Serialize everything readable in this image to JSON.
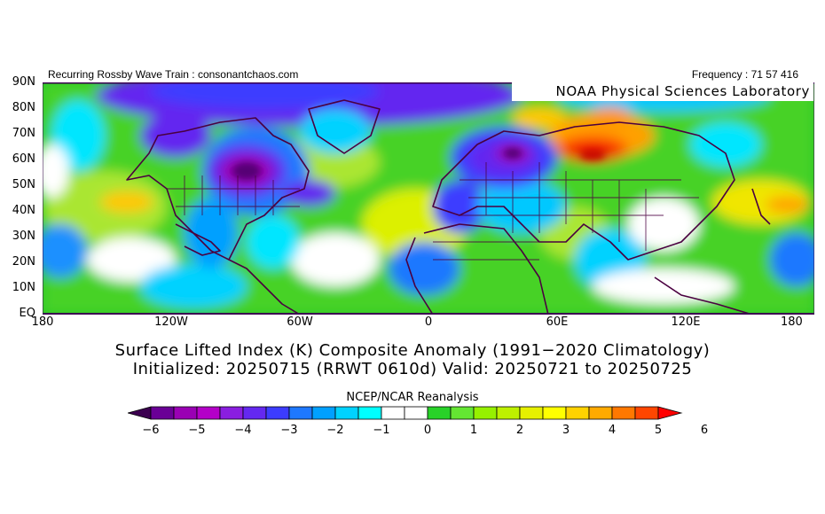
{
  "header": {
    "left_text": "Recurring Rossby Wave Train : consonantchaos.com",
    "right_text": "Frequency : 71 57 416",
    "lab_label": "NOAA Physical Sciences Laboratory"
  },
  "map": {
    "lat_labels": [
      "90N",
      "80N",
      "70N",
      "60N",
      "50N",
      "40N",
      "30N",
      "20N",
      "10N",
      "EQ"
    ],
    "lon_labels": [
      "180",
      "120W",
      "60W",
      "0",
      "60E",
      "120E",
      "180"
    ]
  },
  "titles": {
    "line1": "Surface Lifted Index (K) Composite Anomaly (1991−2020 Climatology)",
    "line2": "Initialized: 20250715 (RRWT 0610d) Valid: 20250721 to 20250725",
    "source": "NCEP/NCAR Reanalysis"
  },
  "colorbar": {
    "labels": [
      "−6",
      "−5",
      "−4",
      "−3",
      "−2",
      "−1",
      "0",
      "1",
      "2",
      "3",
      "4",
      "5",
      "6"
    ],
    "colors": [
      "#3c0050",
      "#6a0096",
      "#9a00b4",
      "#b400c8",
      "#8a1ee0",
      "#6428f0",
      "#3c3cff",
      "#1e78ff",
      "#00a0ff",
      "#00d2ff",
      "#00ffff",
      "#ffffff",
      "#ffffff",
      "#28d228",
      "#64e632",
      "#96f000",
      "#bef000",
      "#e6f000",
      "#ffff00",
      "#ffd200",
      "#ffaa00",
      "#ff7800",
      "#ff4600",
      "#ff0000"
    ]
  }
}
